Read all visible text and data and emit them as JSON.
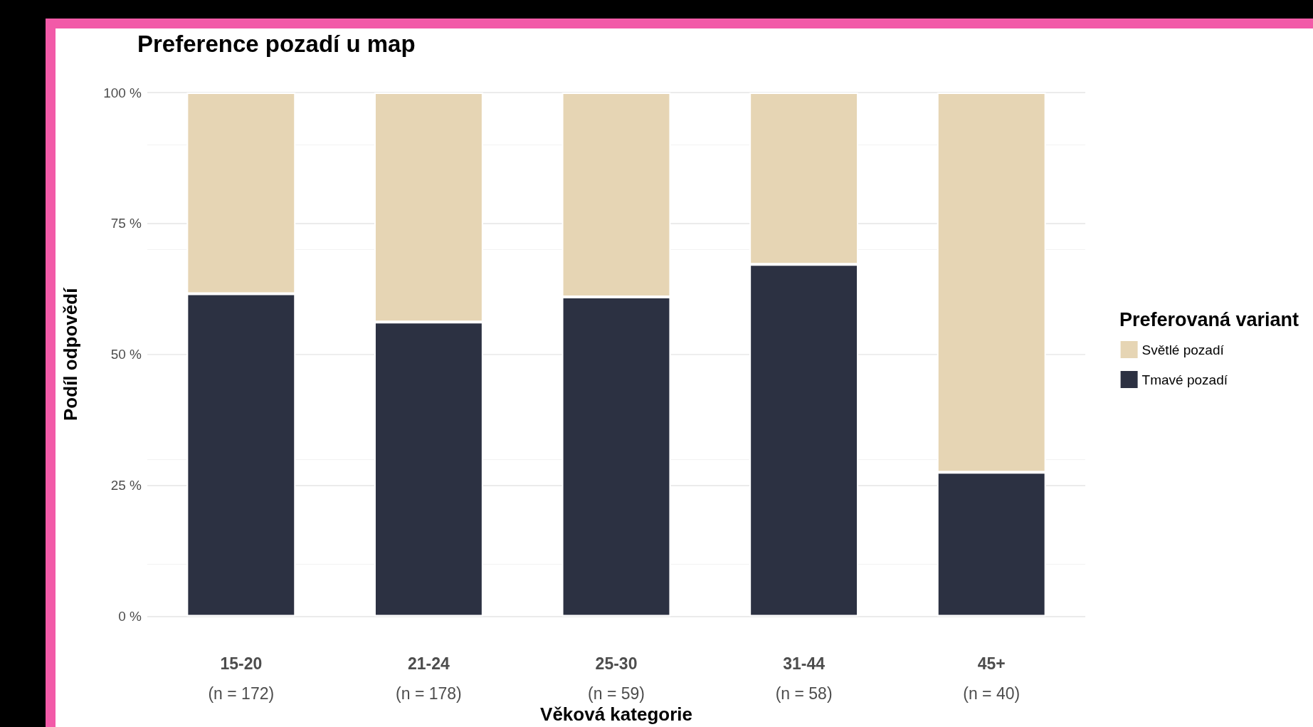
{
  "chart_data": {
    "type": "bar",
    "title": "Preference pozadí u map",
    "xlabel": "Věková kategorie",
    "ylabel": "Podíl odpovědí",
    "legend_title": "Preferovaná variant",
    "categories": [
      "15-20\n(n = 172)",
      "21-24\n(n = 178)",
      "25-30\n(n = 59)",
      "31-44\n(n = 58)",
      "45+\n(n = 40)"
    ],
    "stacked": true,
    "series": [
      {
        "name": "Tmavé pozadí",
        "color": "#2c3142",
        "values": [
          61.6,
          56.2,
          61.0,
          67.2,
          27.5
        ]
      },
      {
        "name": "Světlé pozadí",
        "color": "#e6d5b4",
        "values": [
          38.4,
          43.8,
          39.0,
          32.8,
          72.5
        ]
      }
    ],
    "ylim": [
      0,
      100
    ],
    "yticks": [
      {
        "value": 0,
        "label": "0 %"
      },
      {
        "value": 25,
        "label": "25 %"
      },
      {
        "value": 50,
        "label": "50 %"
      },
      {
        "value": 75,
        "label": "75 %"
      },
      {
        "value": 100,
        "label": "100 %"
      }
    ],
    "grid": "y",
    "legend": "right"
  }
}
